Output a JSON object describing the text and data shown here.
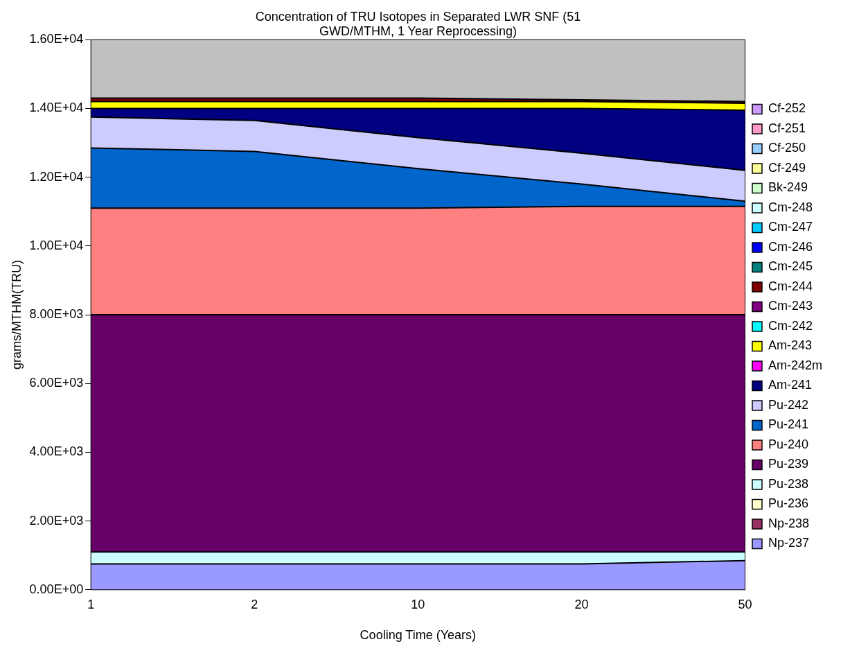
{
  "chart_data": {
    "type": "area",
    "title": "Concentration of TRU Isotopes in Separated LWR SNF (51 GWD/MTHM, 1 Year Reprocessing)",
    "xlabel": "Cooling Time (Years)",
    "ylabel": "grams/MTHM(TRU)",
    "categories": [
      "1",
      "2",
      "10",
      "20",
      "50"
    ],
    "stacked": true,
    "legend": "right",
    "grid": false,
    "ylim": [
      0,
      16000
    ],
    "yticks": [
      {
        "value": 0,
        "label": "0.00E+00"
      },
      {
        "value": 2000,
        "label": "2.00E+03"
      },
      {
        "value": 4000,
        "label": "4.00E+03"
      },
      {
        "value": 6000,
        "label": "6.00E+03"
      },
      {
        "value": 8000,
        "label": "8.00E+03"
      },
      {
        "value": 10000,
        "label": "1.00E+04"
      },
      {
        "value": 12000,
        "label": "1.20E+04"
      },
      {
        "value": 14000,
        "label": "1.40E+04"
      },
      {
        "value": 16000,
        "label": "1.60E+04"
      }
    ],
    "series": [
      {
        "name": "Np-237",
        "color": "#9999ff",
        "values": [
          750,
          750,
          750,
          750,
          850
        ]
      },
      {
        "name": "Np-238",
        "color": "#993366",
        "values": [
          null,
          null,
          null,
          null,
          null
        ]
      },
      {
        "name": "Pu-236",
        "color": "#ffffcc",
        "values": [
          null,
          null,
          null,
          null,
          null
        ]
      },
      {
        "name": "Pu-238",
        "color": "#ccffff",
        "values": [
          350,
          350,
          350,
          350,
          250
        ]
      },
      {
        "name": "Pu-239",
        "color": "#660066",
        "values": [
          6900,
          6900,
          6900,
          6900,
          6900
        ]
      },
      {
        "name": "Pu-240",
        "color": "#ff8080",
        "values": [
          3100,
          3100,
          3100,
          3150,
          3150
        ]
      },
      {
        "name": "Pu-241",
        "color": "#0066cc",
        "values": [
          1750,
          1650,
          1150,
          650,
          150
        ]
      },
      {
        "name": "Pu-242",
        "color": "#ccccff",
        "values": [
          900,
          900,
          900,
          900,
          900
        ]
      },
      {
        "name": "Am-241",
        "color": "#000080",
        "values": [
          250,
          350,
          850,
          1300,
          1750
        ]
      },
      {
        "name": "Am-242m",
        "color": "#ff00ff",
        "values": [
          null,
          null,
          null,
          null,
          null
        ]
      },
      {
        "name": "Am-243",
        "color": "#ffff00",
        "values": [
          200,
          200,
          200,
          200,
          200
        ]
      },
      {
        "name": "Cm-242",
        "color": "#00ffff",
        "values": [
          null,
          null,
          null,
          null,
          null
        ]
      },
      {
        "name": "Cm-243",
        "color": "#800080",
        "values": [
          null,
          null,
          null,
          null,
          null
        ]
      },
      {
        "name": "Cm-244",
        "color": "#800000",
        "values": [
          100,
          100,
          100,
          50,
          50
        ]
      },
      {
        "name": "Cm-245",
        "color": "#008080",
        "values": [
          null,
          null,
          null,
          null,
          null
        ]
      },
      {
        "name": "Cm-246",
        "color": "#0000ff",
        "values": [
          null,
          null,
          null,
          null,
          null
        ]
      },
      {
        "name": "Cm-247",
        "color": "#00ccff",
        "values": [
          null,
          null,
          null,
          null,
          null
        ]
      },
      {
        "name": "Cm-248",
        "color": "#ccffff",
        "values": [
          null,
          null,
          null,
          null,
          null
        ]
      },
      {
        "name": "Bk-249",
        "color": "#ccffcc",
        "values": [
          null,
          null,
          null,
          null,
          null
        ]
      },
      {
        "name": "Cf-249",
        "color": "#ffff99",
        "values": [
          null,
          null,
          null,
          null,
          null
        ]
      },
      {
        "name": "Cf-250",
        "color": "#99ccff",
        "values": [
          null,
          null,
          null,
          null,
          null
        ]
      },
      {
        "name": "Cf-251",
        "color": "#ff99cc",
        "values": [
          null,
          null,
          null,
          null,
          null
        ]
      },
      {
        "name": "Cf-252",
        "color": "#cc99ff",
        "values": [
          null,
          null,
          null,
          null,
          null
        ]
      }
    ]
  }
}
